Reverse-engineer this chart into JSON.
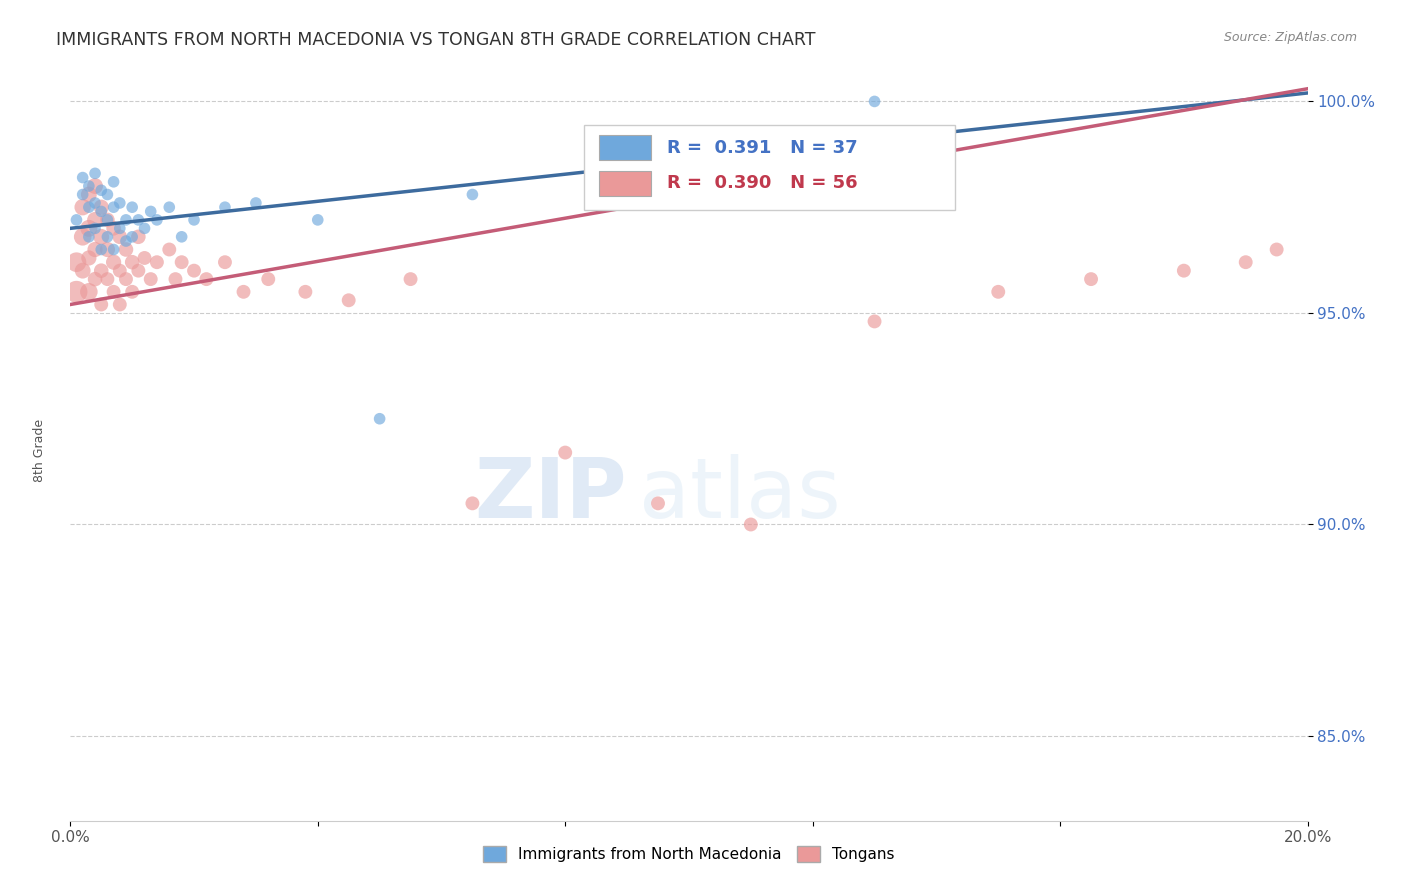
{
  "title": "IMMIGRANTS FROM NORTH MACEDONIA VS TONGAN 8TH GRADE CORRELATION CHART",
  "source": "Source: ZipAtlas.com",
  "ylabel": "8th Grade",
  "xlim": [
    0.0,
    0.2
  ],
  "ylim": [
    0.83,
    1.005
  ],
  "yticks": [
    0.85,
    0.9,
    0.95,
    1.0
  ],
  "ytick_labels": [
    "85.0%",
    "90.0%",
    "95.0%",
    "100.0%"
  ],
  "xticks": [
    0.0,
    0.04,
    0.08,
    0.12,
    0.16,
    0.2
  ],
  "xtick_labels": [
    "0.0%",
    "",
    "",
    "",
    "",
    "20.0%"
  ],
  "legend_blue_label": "Immigrants from North Macedonia",
  "legend_pink_label": "Tongans",
  "blue_R": 0.391,
  "blue_N": 37,
  "pink_R": 0.39,
  "pink_N": 56,
  "blue_color": "#6fa8dc",
  "pink_color": "#ea9999",
  "blue_line_color": "#3d6b9e",
  "pink_line_color": "#c45c77",
  "watermark_zip": "ZIP",
  "watermark_atlas": "atlas",
  "blue_scatter_x": [
    0.001,
    0.002,
    0.002,
    0.003,
    0.003,
    0.003,
    0.004,
    0.004,
    0.004,
    0.005,
    0.005,
    0.005,
    0.006,
    0.006,
    0.006,
    0.007,
    0.007,
    0.007,
    0.008,
    0.008,
    0.009,
    0.009,
    0.01,
    0.01,
    0.011,
    0.012,
    0.013,
    0.014,
    0.016,
    0.018,
    0.02,
    0.025,
    0.03,
    0.04,
    0.05,
    0.065,
    0.13
  ],
  "blue_scatter_y": [
    0.972,
    0.978,
    0.982,
    0.975,
    0.98,
    0.968,
    0.976,
    0.983,
    0.97,
    0.974,
    0.979,
    0.965,
    0.972,
    0.978,
    0.968,
    0.975,
    0.981,
    0.965,
    0.97,
    0.976,
    0.972,
    0.967,
    0.975,
    0.968,
    0.972,
    0.97,
    0.974,
    0.972,
    0.975,
    0.968,
    0.972,
    0.975,
    0.976,
    0.972,
    0.925,
    0.978,
    1.0
  ],
  "blue_scatter_sizes": [
    70,
    70,
    70,
    70,
    70,
    70,
    70,
    70,
    70,
    70,
    70,
    70,
    70,
    70,
    70,
    70,
    70,
    70,
    70,
    70,
    70,
    70,
    70,
    70,
    70,
    70,
    70,
    70,
    70,
    70,
    70,
    70,
    70,
    70,
    70,
    70,
    70
  ],
  "pink_scatter_x": [
    0.001,
    0.001,
    0.002,
    0.002,
    0.002,
    0.003,
    0.003,
    0.003,
    0.003,
    0.004,
    0.004,
    0.004,
    0.004,
    0.005,
    0.005,
    0.005,
    0.005,
    0.006,
    0.006,
    0.006,
    0.007,
    0.007,
    0.007,
    0.008,
    0.008,
    0.008,
    0.009,
    0.009,
    0.01,
    0.01,
    0.011,
    0.011,
    0.012,
    0.013,
    0.014,
    0.016,
    0.017,
    0.018,
    0.02,
    0.022,
    0.025,
    0.028,
    0.032,
    0.038,
    0.045,
    0.055,
    0.065,
    0.08,
    0.095,
    0.11,
    0.13,
    0.15,
    0.165,
    0.18,
    0.19,
    0.195
  ],
  "pink_scatter_y": [
    0.955,
    0.962,
    0.968,
    0.975,
    0.96,
    0.97,
    0.978,
    0.963,
    0.955,
    0.972,
    0.965,
    0.958,
    0.98,
    0.968,
    0.975,
    0.96,
    0.952,
    0.965,
    0.972,
    0.958,
    0.962,
    0.97,
    0.955,
    0.968,
    0.96,
    0.952,
    0.965,
    0.958,
    0.962,
    0.955,
    0.968,
    0.96,
    0.963,
    0.958,
    0.962,
    0.965,
    0.958,
    0.962,
    0.96,
    0.958,
    0.962,
    0.955,
    0.958,
    0.955,
    0.953,
    0.958,
    0.905,
    0.917,
    0.905,
    0.9,
    0.948,
    0.955,
    0.958,
    0.96,
    0.962,
    0.965
  ],
  "pink_scatter_sizes": [
    250,
    200,
    160,
    140,
    130,
    150,
    130,
    120,
    160,
    130,
    120,
    110,
    130,
    130,
    120,
    110,
    100,
    120,
    110,
    100,
    120,
    110,
    100,
    110,
    100,
    100,
    110,
    100,
    110,
    100,
    110,
    100,
    100,
    100,
    100,
    100,
    100,
    100,
    100,
    100,
    100,
    100,
    100,
    100,
    100,
    100,
    100,
    100,
    100,
    100,
    100,
    100,
    100,
    100,
    100,
    100
  ]
}
